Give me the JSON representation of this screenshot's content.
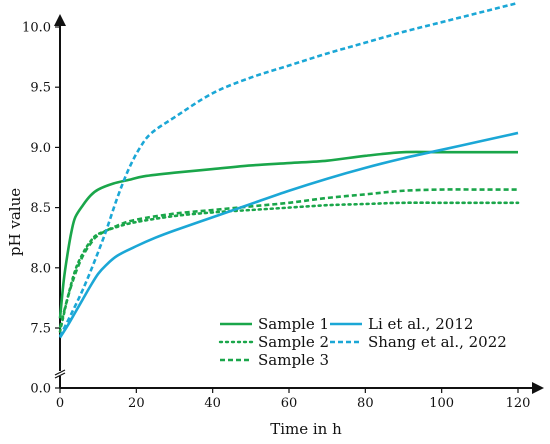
{
  "chart_data": {
    "type": "line",
    "xlabel": "Time in h",
    "ylabel": "pH value",
    "xlim": [
      0,
      120
    ],
    "ylim_display": [
      7.25,
      10.25
    ],
    "y_axis_break": true,
    "x_ticks": [
      0,
      20,
      40,
      60,
      80,
      100,
      120
    ],
    "y_ticks": [
      7.5,
      8.0,
      8.5,
      9.0,
      9.5,
      10.0
    ],
    "x_tick_labels": [
      "0",
      "20",
      "40",
      "60",
      "80",
      "100",
      "120"
    ],
    "y_tick_labels": [
      "7.5",
      "8.0",
      "8.5",
      "9.0",
      "9.5",
      "10.0"
    ],
    "y_zero_label": "0.0",
    "grid": false,
    "legend_position": "bottom-right",
    "series": [
      {
        "name": "Sample 1",
        "color": "#1aa64a",
        "style": "solid",
        "points": [
          [
            0,
            7.58
          ],
          [
            1,
            7.9
          ],
          [
            2,
            8.12
          ],
          [
            3,
            8.3
          ],
          [
            4,
            8.42
          ],
          [
            6,
            8.52
          ],
          [
            8,
            8.6
          ],
          [
            10,
            8.65
          ],
          [
            14,
            8.7
          ],
          [
            18,
            8.73
          ],
          [
            22,
            8.76
          ],
          [
            30,
            8.79
          ],
          [
            40,
            8.82
          ],
          [
            50,
            8.85
          ],
          [
            60,
            8.87
          ],
          [
            70,
            8.89
          ],
          [
            80,
            8.93
          ],
          [
            90,
            8.96
          ],
          [
            100,
            8.96
          ],
          [
            110,
            8.96
          ],
          [
            120,
            8.96
          ]
        ]
      },
      {
        "name": "Sample 2",
        "color": "#1aa64a",
        "style": "dotted",
        "points": [
          [
            0,
            7.47
          ],
          [
            2,
            7.75
          ],
          [
            4,
            7.98
          ],
          [
            6,
            8.12
          ],
          [
            8,
            8.22
          ],
          [
            10,
            8.28
          ],
          [
            15,
            8.34
          ],
          [
            20,
            8.38
          ],
          [
            30,
            8.43
          ],
          [
            40,
            8.46
          ],
          [
            50,
            8.48
          ],
          [
            60,
            8.5
          ],
          [
            70,
            8.52
          ],
          [
            80,
            8.53
          ],
          [
            90,
            8.54
          ],
          [
            100,
            8.54
          ],
          [
            110,
            8.54
          ],
          [
            120,
            8.54
          ]
        ]
      },
      {
        "name": "Sample 3",
        "color": "#1aa64a",
        "style": "dashed",
        "points": [
          [
            0,
            7.5
          ],
          [
            2,
            7.75
          ],
          [
            4,
            7.95
          ],
          [
            6,
            8.1
          ],
          [
            8,
            8.2
          ],
          [
            10,
            8.27
          ],
          [
            15,
            8.35
          ],
          [
            20,
            8.4
          ],
          [
            30,
            8.45
          ],
          [
            40,
            8.48
          ],
          [
            50,
            8.51
          ],
          [
            60,
            8.54
          ],
          [
            70,
            8.58
          ],
          [
            80,
            8.61
          ],
          [
            90,
            8.64
          ],
          [
            100,
            8.65
          ],
          [
            110,
            8.65
          ],
          [
            120,
            8.65
          ]
        ]
      },
      {
        "name": "Li et al., 2012",
        "color": "#1ba7d6",
        "style": "solid",
        "points": [
          [
            0,
            7.42
          ],
          [
            2,
            7.52
          ],
          [
            4,
            7.63
          ],
          [
            6,
            7.74
          ],
          [
            8,
            7.85
          ],
          [
            10,
            7.95
          ],
          [
            12,
            8.02
          ],
          [
            15,
            8.1
          ],
          [
            20,
            8.18
          ],
          [
            25,
            8.25
          ],
          [
            30,
            8.31
          ],
          [
            40,
            8.42
          ],
          [
            50,
            8.53
          ],
          [
            60,
            8.64
          ],
          [
            70,
            8.74
          ],
          [
            80,
            8.83
          ],
          [
            90,
            8.91
          ],
          [
            100,
            8.98
          ],
          [
            110,
            9.05
          ],
          [
            120,
            9.12
          ]
        ]
      },
      {
        "name": "Shang et al., 2022",
        "color": "#1ba7d6",
        "style": "dashed",
        "points": [
          [
            0,
            7.43
          ],
          [
            3,
            7.62
          ],
          [
            6,
            7.82
          ],
          [
            9,
            8.05
          ],
          [
            12,
            8.3
          ],
          [
            15,
            8.58
          ],
          [
            18,
            8.82
          ],
          [
            21,
            9.0
          ],
          [
            24,
            9.12
          ],
          [
            30,
            9.25
          ],
          [
            40,
            9.45
          ],
          [
            50,
            9.58
          ],
          [
            60,
            9.68
          ],
          [
            70,
            9.78
          ],
          [
            80,
            9.87
          ],
          [
            90,
            9.96
          ],
          [
            100,
            10.04
          ],
          [
            110,
            10.12
          ],
          [
            120,
            10.2
          ]
        ]
      }
    ]
  }
}
